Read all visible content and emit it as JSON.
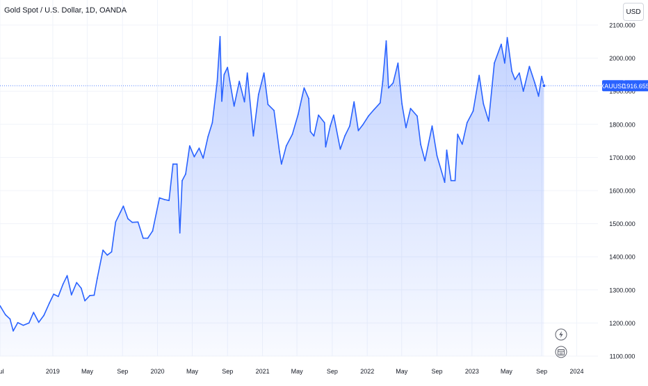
{
  "header": {
    "title": "Gold Spot / U.S. Dollar, 1D, OANDA",
    "currency_button": "USD"
  },
  "price_badge": {
    "symbol": "XAUUSD",
    "price": "1916.655"
  },
  "colors": {
    "line": "#2962ff",
    "badge": "#2962ff",
    "text": "#131722",
    "grid": "#f0f3fa"
  },
  "icons": [
    "lightning-icon",
    "calendar-icon"
  ],
  "chart_data": {
    "type": "area",
    "grid": true,
    "y_axis_position": "right",
    "ylim": [
      1100,
      2100
    ],
    "y_ticks": [
      1100,
      1200,
      1300,
      1400,
      1500,
      1600,
      1700,
      1800,
      1900,
      2000,
      2100
    ],
    "y_tick_labels": [
      "1100.000",
      "1200.000",
      "1300.000",
      "1400.000",
      "1500.000",
      "1600.000",
      "1700.000",
      "1800.000",
      "1900.000",
      "2000.000",
      "2100.000"
    ],
    "xlim": [
      "2018-07-01",
      "2024-03-15"
    ],
    "x_ticks": [
      {
        "date": "2018-07-01",
        "label": "Jul"
      },
      {
        "date": "2019-01-01",
        "label": "2019"
      },
      {
        "date": "2019-05-01",
        "label": "May"
      },
      {
        "date": "2019-09-01",
        "label": "Sep"
      },
      {
        "date": "2020-01-01",
        "label": "2020"
      },
      {
        "date": "2020-05-01",
        "label": "May"
      },
      {
        "date": "2020-09-01",
        "label": "Sep"
      },
      {
        "date": "2021-01-01",
        "label": "2021"
      },
      {
        "date": "2021-05-01",
        "label": "May"
      },
      {
        "date": "2021-09-01",
        "label": "Sep"
      },
      {
        "date": "2022-01-01",
        "label": "2022"
      },
      {
        "date": "2022-05-01",
        "label": "May"
      },
      {
        "date": "2022-09-01",
        "label": "Sep"
      },
      {
        "date": "2023-01-01",
        "label": "2023"
      },
      {
        "date": "2023-05-01",
        "label": "May"
      },
      {
        "date": "2023-09-01",
        "label": "Sep"
      },
      {
        "date": "2024-01-01",
        "label": "2024"
      }
    ],
    "last_value": 1916.655,
    "series": [
      {
        "points": [
          [
            "2018-07-01",
            1252
          ],
          [
            "2018-07-20",
            1225
          ],
          [
            "2018-08-05",
            1212
          ],
          [
            "2018-08-16",
            1176
          ],
          [
            "2018-09-01",
            1201
          ],
          [
            "2018-09-20",
            1193
          ],
          [
            "2018-10-10",
            1200
          ],
          [
            "2018-10-26",
            1232
          ],
          [
            "2018-11-13",
            1202
          ],
          [
            "2018-12-01",
            1223
          ],
          [
            "2018-12-20",
            1260
          ],
          [
            "2019-01-04",
            1287
          ],
          [
            "2019-01-20",
            1280
          ],
          [
            "2019-02-06",
            1318
          ],
          [
            "2019-02-20",
            1343
          ],
          [
            "2019-03-07",
            1285
          ],
          [
            "2019-03-25",
            1322
          ],
          [
            "2019-04-10",
            1305
          ],
          [
            "2019-04-23",
            1267
          ],
          [
            "2019-05-10",
            1283
          ],
          [
            "2019-05-25",
            1284
          ],
          [
            "2019-06-05",
            1335
          ],
          [
            "2019-06-25",
            1420
          ],
          [
            "2019-07-10",
            1405
          ],
          [
            "2019-07-25",
            1415
          ],
          [
            "2019-08-08",
            1505
          ],
          [
            "2019-08-25",
            1535
          ],
          [
            "2019-09-04",
            1553
          ],
          [
            "2019-09-20",
            1515
          ],
          [
            "2019-10-05",
            1504
          ],
          [
            "2019-10-25",
            1505
          ],
          [
            "2019-11-12",
            1456
          ],
          [
            "2019-11-28",
            1456
          ],
          [
            "2019-12-15",
            1478
          ],
          [
            "2020-01-08",
            1578
          ],
          [
            "2020-01-25",
            1573
          ],
          [
            "2020-02-10",
            1570
          ],
          [
            "2020-02-24",
            1680
          ],
          [
            "2020-03-09",
            1680
          ],
          [
            "2020-03-19",
            1472
          ],
          [
            "2020-03-27",
            1630
          ],
          [
            "2020-04-08",
            1650
          ],
          [
            "2020-04-22",
            1735
          ],
          [
            "2020-05-08",
            1702
          ],
          [
            "2020-05-25",
            1728
          ],
          [
            "2020-06-08",
            1698
          ],
          [
            "2020-06-25",
            1763
          ],
          [
            "2020-07-10",
            1805
          ],
          [
            "2020-07-27",
            1930
          ],
          [
            "2020-08-06",
            2065
          ],
          [
            "2020-08-12",
            1870
          ],
          [
            "2020-08-20",
            1950
          ],
          [
            "2020-09-01",
            1972
          ],
          [
            "2020-09-24",
            1855
          ],
          [
            "2020-10-12",
            1930
          ],
          [
            "2020-10-30",
            1868
          ],
          [
            "2020-11-09",
            1955
          ],
          [
            "2020-11-30",
            1765
          ],
          [
            "2020-12-18",
            1890
          ],
          [
            "2021-01-06",
            1955
          ],
          [
            "2021-01-20",
            1860
          ],
          [
            "2021-02-10",
            1842
          ],
          [
            "2021-03-01",
            1718
          ],
          [
            "2021-03-08",
            1680
          ],
          [
            "2021-03-25",
            1735
          ],
          [
            "2021-04-15",
            1770
          ],
          [
            "2021-05-05",
            1830
          ],
          [
            "2021-05-26",
            1910
          ],
          [
            "2021-06-11",
            1878
          ],
          [
            "2021-06-17",
            1778
          ],
          [
            "2021-06-29",
            1765
          ],
          [
            "2021-07-15",
            1828
          ],
          [
            "2021-08-05",
            1805
          ],
          [
            "2021-08-09",
            1732
          ],
          [
            "2021-08-25",
            1795
          ],
          [
            "2021-09-06",
            1828
          ],
          [
            "2021-09-29",
            1725
          ],
          [
            "2021-10-15",
            1765
          ],
          [
            "2021-11-01",
            1795
          ],
          [
            "2021-11-16",
            1868
          ],
          [
            "2021-12-01",
            1781
          ],
          [
            "2021-12-16",
            1798
          ],
          [
            "2022-01-05",
            1825
          ],
          [
            "2022-01-25",
            1845
          ],
          [
            "2022-02-15",
            1865
          ],
          [
            "2022-02-24",
            1930
          ],
          [
            "2022-03-08",
            2052
          ],
          [
            "2022-03-16",
            1910
          ],
          [
            "2022-04-01",
            1925
          ],
          [
            "2022-04-18",
            1985
          ],
          [
            "2022-05-02",
            1862
          ],
          [
            "2022-05-16",
            1790
          ],
          [
            "2022-06-01",
            1848
          ],
          [
            "2022-06-24",
            1825
          ],
          [
            "2022-07-06",
            1740
          ],
          [
            "2022-07-21",
            1690
          ],
          [
            "2022-08-15",
            1795
          ],
          [
            "2022-09-01",
            1705
          ],
          [
            "2022-09-28",
            1625
          ],
          [
            "2022-10-05",
            1722
          ],
          [
            "2022-10-20",
            1630
          ],
          [
            "2022-11-03",
            1630
          ],
          [
            "2022-11-12",
            1770
          ],
          [
            "2022-11-28",
            1740
          ],
          [
            "2022-12-15",
            1805
          ],
          [
            "2023-01-05",
            1840
          ],
          [
            "2023-01-26",
            1948
          ],
          [
            "2023-02-10",
            1862
          ],
          [
            "2023-02-28",
            1810
          ],
          [
            "2023-03-20",
            1985
          ],
          [
            "2023-04-13",
            2042
          ],
          [
            "2023-04-25",
            1985
          ],
          [
            "2023-05-04",
            2062
          ],
          [
            "2023-05-20",
            1960
          ],
          [
            "2023-05-31",
            1935
          ],
          [
            "2023-06-15",
            1955
          ],
          [
            "2023-06-29",
            1900
          ],
          [
            "2023-07-20",
            1975
          ],
          [
            "2023-08-08",
            1925
          ],
          [
            "2023-08-21",
            1885
          ],
          [
            "2023-09-01",
            1945
          ],
          [
            "2023-09-09",
            1916.655
          ]
        ]
      }
    ]
  }
}
